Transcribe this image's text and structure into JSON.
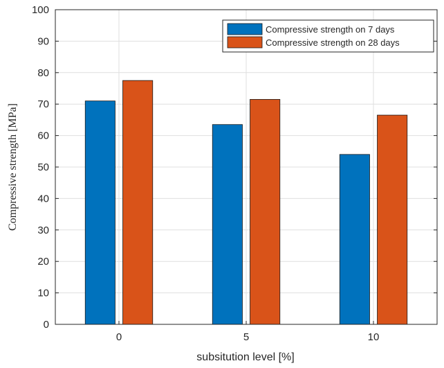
{
  "chart_data": {
    "type": "bar",
    "title": "",
    "xlabel": "subsitution level [%]",
    "ylabel": "Compressive strength [MPa]",
    "categories": [
      "0",
      "5",
      "10"
    ],
    "series": [
      {
        "name": "Compressive strength on 7 days",
        "color": "#0072bd",
        "values": [
          71,
          63.5,
          54
        ]
      },
      {
        "name": "Compressive strength on 28 days",
        "color": "#d95319",
        "values": [
          77.5,
          71.5,
          66.5
        ]
      }
    ],
    "ylim": [
      0,
      100
    ],
    "yticks": [
      "0",
      "10",
      "20",
      "30",
      "40",
      "50",
      "60",
      "70",
      "80",
      "90",
      "100"
    ],
    "grid": true,
    "legend_position": "top-right"
  }
}
